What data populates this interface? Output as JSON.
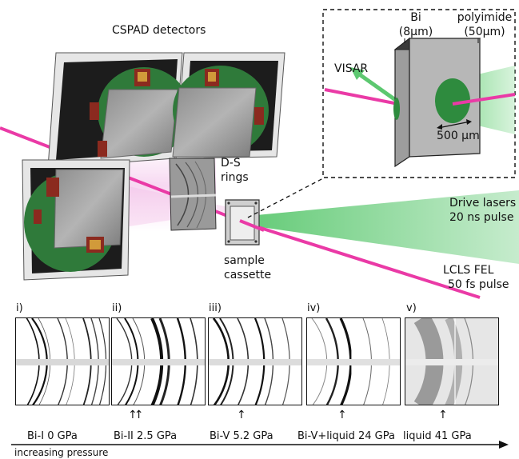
{
  "labels": {
    "cspad": "CSPAD detectors",
    "visar": "VISAR",
    "bi": "Bi",
    "bi_thickness": "(8µm)",
    "polyimide": "polyimide",
    "polyimide_thickness": "(50µm)",
    "scale_bar": "500 µm",
    "ds_rings_1": "D-S",
    "ds_rings_2": "rings",
    "drive_lasers_1": "Drive lasers",
    "drive_lasers_2": "20 ns pulse",
    "lcls_1": "LCLS FEL",
    "lcls_2": "50 fs pulse",
    "sample_1": "sample",
    "sample_2": "cassette",
    "axis": "increasing pressure"
  },
  "panels": [
    {
      "id": "i)",
      "caption": "Bi-I 0 GPa",
      "arrows": ""
    },
    {
      "id": "ii)",
      "caption": "Bi-II 2.5 GPa",
      "arrows": "↑↑"
    },
    {
      "id": "iii)",
      "caption": "Bi-V 5.2 GPa",
      "arrows": "↑"
    },
    {
      "id": "iv)",
      "caption": "Bi-V+liquid 24 GPa",
      "arrows": "↑"
    },
    {
      "id": "v)",
      "caption": "liquid 41 GPa",
      "arrows": "↑"
    }
  ],
  "colors": {
    "xray_beam": "#ea3aa6",
    "drive_laser": "#5cc870",
    "detector_board": "#2f7a3a",
    "frame": "#d8d8d8"
  }
}
